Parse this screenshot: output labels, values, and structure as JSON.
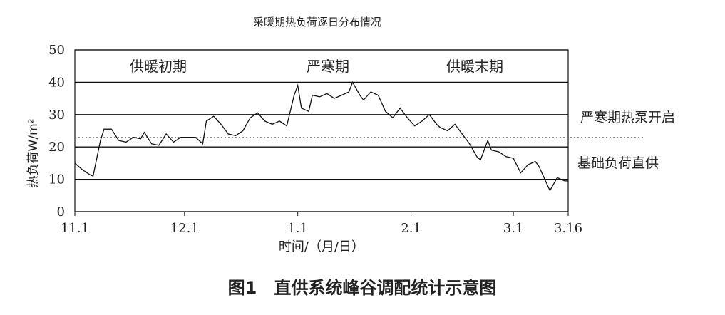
{
  "chart_data": {
    "type": "line",
    "title": "采暖期热负荷逐日分布情况",
    "caption": "图1　直供系统峰谷调配统计示意图",
    "x_label": "时间/（月/日）",
    "y_label": "热负荷W/m²",
    "annotations": [
      "供暖初期",
      "严寒期",
      "供暖末期"
    ],
    "threshold": {
      "value": 23,
      "label": "严寒期热泵开启"
    },
    "base_label": "基础负荷直供",
    "xlim": [
      0,
      135
    ],
    "xticks": [
      {
        "value": 0,
        "label": "11.1"
      },
      {
        "value": 30,
        "label": "12.1"
      },
      {
        "value": 61,
        "label": "1.1"
      },
      {
        "value": 92,
        "label": "2.1"
      },
      {
        "value": 120,
        "label": "3.1"
      },
      {
        "value": 135,
        "label": "3.16"
      }
    ],
    "ylim": [
      0,
      50
    ],
    "yticks": [
      0,
      10,
      20,
      30,
      40,
      50
    ],
    "grid": true,
    "series": [
      {
        "color": "#111111",
        "x": [
          0,
          2,
          4,
          5,
          7,
          8,
          10,
          12,
          14,
          16,
          18,
          19,
          21,
          23,
          25,
          27,
          29,
          31,
          33,
          35,
          36,
          38,
          40,
          42,
          44,
          46,
          48,
          50,
          52,
          54,
          56,
          58,
          60,
          61,
          62,
          64,
          65,
          67,
          69,
          71,
          73,
          75,
          76,
          78,
          79,
          81,
          83,
          85,
          87,
          89,
          91,
          93,
          95,
          97,
          99,
          100,
          102,
          104,
          106,
          108,
          110,
          111,
          113,
          114,
          116,
          118,
          120,
          122,
          124,
          126,
          127,
          129,
          130,
          132,
          134,
          135
        ],
        "values": [
          15,
          13,
          11.5,
          11,
          22,
          25.5,
          25.5,
          22,
          21.5,
          23,
          22.5,
          24.5,
          21,
          20.5,
          24,
          21.5,
          23,
          23,
          23,
          21,
          28,
          29.5,
          27,
          24,
          23.5,
          25,
          29,
          30.5,
          28,
          27,
          28,
          26.5,
          36,
          39,
          32,
          31,
          36,
          35.5,
          36.5,
          35,
          36,
          37,
          40,
          36,
          34.5,
          37,
          36,
          31,
          29,
          32,
          29,
          26.5,
          28,
          30,
          27,
          26,
          25,
          27,
          24,
          21,
          17,
          16,
          22,
          19,
          18.5,
          17,
          16.5,
          12,
          14.5,
          15.5,
          14,
          9,
          6.5,
          10.5,
          9.5,
          9.5
        ]
      }
    ]
  }
}
